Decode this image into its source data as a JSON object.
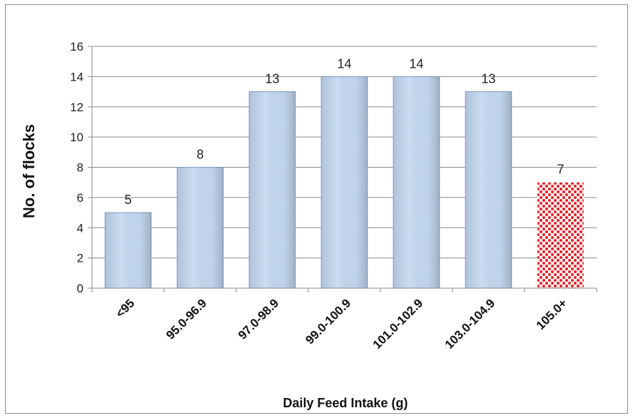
{
  "chart_data": {
    "type": "bar",
    "title": "",
    "xlabel": "Daily Feed Intake (g)",
    "ylabel": "No. of flocks",
    "categories": [
      "<95",
      "95.0-96.9",
      "97.0-98.9",
      "99.0-100.9",
      "101.0-102.9",
      "103.0-104.9",
      "105.0+"
    ],
    "values": [
      5,
      8,
      13,
      14,
      14,
      13,
      7
    ],
    "data_labels": [
      "5",
      "8",
      "13",
      "14",
      "14",
      "13",
      "7"
    ],
    "ylim": [
      0,
      16
    ],
    "yticks": [
      0,
      2,
      4,
      6,
      8,
      10,
      12,
      14,
      16
    ],
    "grid": true,
    "legend": "none",
    "colors": {
      "bar": "#b9d1ee",
      "bar_edge": "#7f9cc4",
      "highlight_bar": "#e8232a",
      "highlight_index": 6,
      "grid": "#8a8a8a"
    }
  }
}
